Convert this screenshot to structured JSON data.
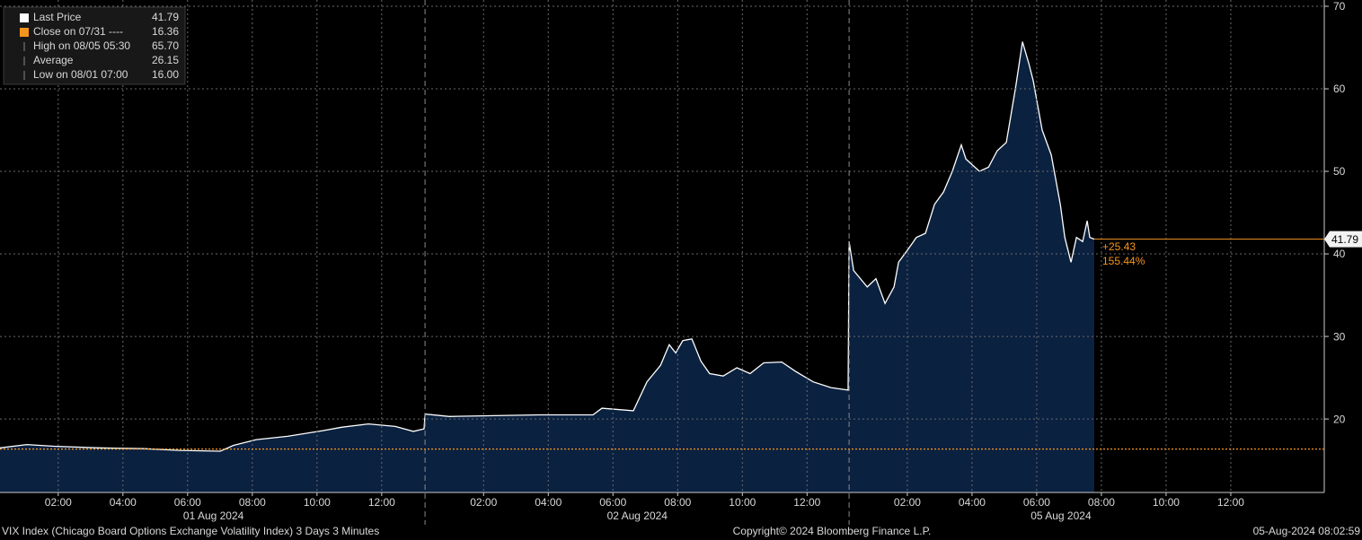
{
  "chart_data": {
    "type": "area",
    "title": "VIX Index (Chicago Board Options Exchange Volatility Index) 3 Days 3 Minutes",
    "copyright": "Copyright© 2024 Bloomberg Finance L.P.",
    "timestamp": "05-Aug-2024 08:02:59",
    "color": "#ffffff",
    "fill": "#0b2140",
    "grid": true,
    "x": [
      0,
      0.83,
      1.67,
      3.06,
      4.44,
      5.56,
      6.81,
      7.22,
      7.92,
      8.89,
      10,
      10.56,
      11.39,
      12.22,
      12.78,
      13.11,
      13.14,
      13.89,
      15.28,
      16.67,
      18.33,
      18.61,
      19.58,
      20,
      20.42,
      20.69,
      20.89,
      21.11,
      21.39,
      21.67,
      21.94,
      22.36,
      22.78,
      23.19,
      23.61,
      24.17,
      24.58,
      25.14,
      25.69,
      26.22,
      26.25,
      26.39,
      26.81,
      27.08,
      27.36,
      27.64,
      27.78,
      28.06,
      28.33,
      28.61,
      28.89,
      29.17,
      29.44,
      29.72,
      29.86,
      30.28,
      30.56,
      30.83,
      31.11,
      31.39,
      31.61,
      31.81,
      31.94,
      32.22,
      32.5,
      32.78,
      32.92,
      33.11,
      33.28,
      33.47,
      33.61,
      33.69,
      33.83
    ],
    "values": [
      16.5,
      16.9,
      16.7,
      16.5,
      16.4,
      16.2,
      16.1,
      16.8,
      17.5,
      17.9,
      18.6,
      19,
      19.4,
      19.1,
      18.5,
      18.8,
      20.6,
      20.3,
      20.4,
      20.5,
      20.5,
      21.3,
      21,
      24.5,
      26.5,
      29,
      28,
      29.5,
      29.7,
      27,
      25.5,
      25.2,
      26.2,
      25.5,
      26.8,
      26.9,
      25.8,
      24.5,
      23.8,
      23.5,
      41.5,
      38,
      36,
      37,
      34,
      36,
      39,
      40.5,
      42,
      42.5,
      46,
      47.5,
      50,
      53.2,
      51.5,
      50,
      50.5,
      52.5,
      53.5,
      60,
      65.7,
      63,
      61,
      55,
      52,
      46,
      42,
      39,
      42,
      41.5,
      44,
      42,
      41.79
    ],
    "xlim": [
      0,
      40.94
    ],
    "xticks": [
      {
        "value": 1.8,
        "label": "02:00"
      },
      {
        "value": 3.8,
        "label": "04:00"
      },
      {
        "value": 5.8,
        "label": "06:00"
      },
      {
        "value": 7.8,
        "label": "08:00"
      },
      {
        "value": 9.8,
        "label": "10:00"
      },
      {
        "value": 11.8,
        "label": "12:00"
      },
      {
        "value": 14.95,
        "label": "02:00"
      },
      {
        "value": 16.95,
        "label": "04:00"
      },
      {
        "value": 18.95,
        "label": "06:00"
      },
      {
        "value": 20.95,
        "label": "08:00"
      },
      {
        "value": 22.95,
        "label": "10:00"
      },
      {
        "value": 24.95,
        "label": "12:00"
      },
      {
        "value": 28.05,
        "label": "02:00"
      },
      {
        "value": 30.05,
        "label": "04:00"
      },
      {
        "value": 32.05,
        "label": "06:00"
      },
      {
        "value": 34.05,
        "label": "08:00"
      },
      {
        "value": 36.05,
        "label": "10:00"
      },
      {
        "value": 38.05,
        "label": "12:00"
      }
    ],
    "days": [
      {
        "value": 6.6,
        "label": "01 Aug 2024"
      },
      {
        "value": 19.7,
        "label": "02 Aug 2024"
      },
      {
        "value": 32.8,
        "label": "05 Aug 2024"
      }
    ],
    "day_breaks": [
      13.14,
      26.25
    ],
    "ylim": [
      11.1,
      70.76
    ],
    "yticks": [
      20,
      30,
      40,
      50,
      60,
      70
    ],
    "legend": [
      {
        "label": "Last Price",
        "value": 41.79,
        "color": "#ffffff"
      },
      {
        "label": "Close on 07/31 ----",
        "value": 16.36,
        "color": "#f7941d"
      },
      {
        "label": "High on 08/05 05:30",
        "value": 65.7,
        "value_label": "65.70"
      },
      {
        "label": "Average",
        "value": 26.15
      },
      {
        "label": "Low on 08/01 07:00",
        "value": 16,
        "value_label": "16.00"
      }
    ],
    "change": {
      "value": 25.43,
      "label": "+25.43"
    },
    "change_pct": {
      "value": 155.44,
      "label": "155.44%"
    }
  }
}
